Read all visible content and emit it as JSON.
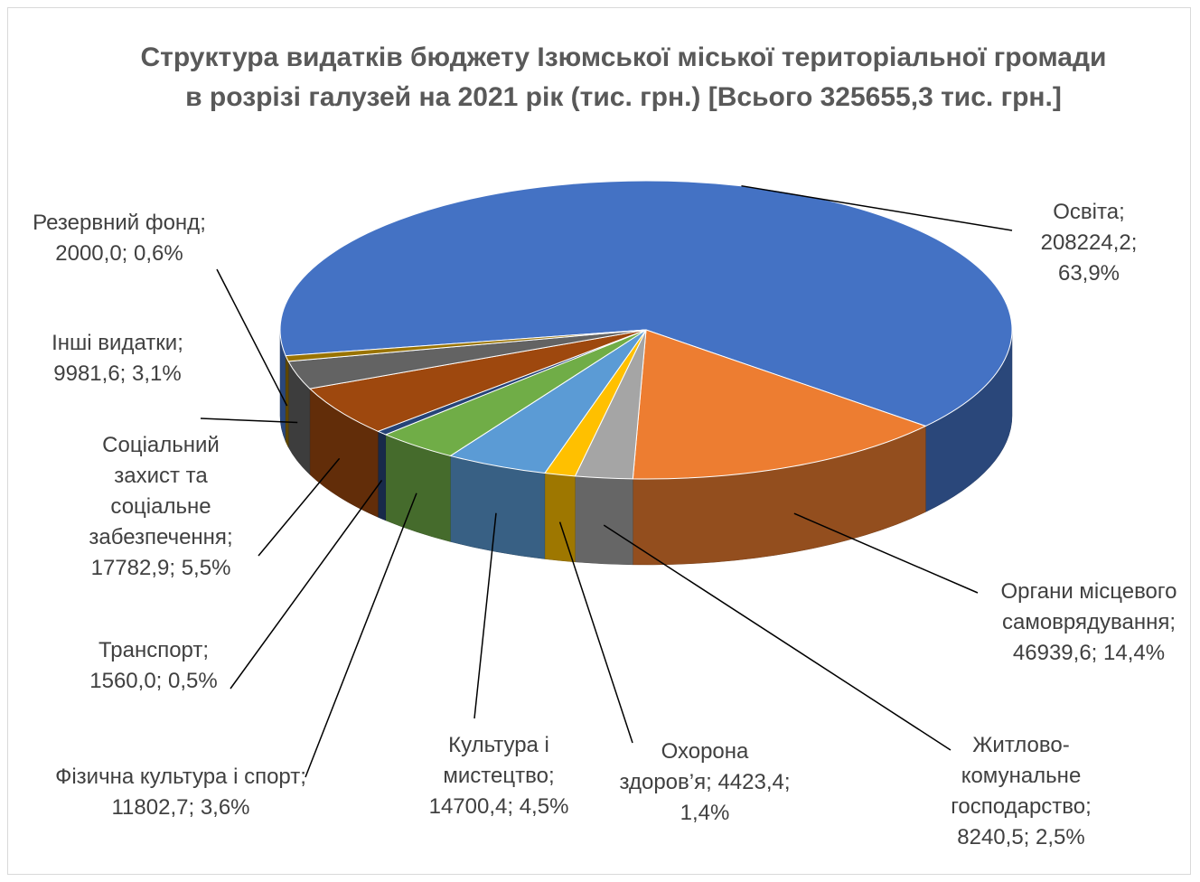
{
  "chart_data": {
    "type": "pie3d",
    "title": "Структура видатків бюджету Ізюмської міської територіальної громади в розрізі галузей на 2021 рік (тис. грн.) [Всього 325655,3 тис. грн.]",
    "label_separator": "; ",
    "categories": [
      "Освіта",
      "Органи місцевого самоврядування",
      "Житлово-комунальне господарство",
      "Охорона здоров’я",
      "Культура і мистецтво",
      "Фізична культура і спорт",
      "Транспорт",
      "Соціальний захист та соціальне забезпечення",
      "Інші видатки",
      "Резервний фонд"
    ],
    "values": [
      208224.2,
      46939.6,
      8240.5,
      4423.4,
      14700.4,
      11802.7,
      1560.0,
      17782.9,
      9981.6,
      2000.0
    ],
    "value_labels": [
      "208224,2",
      "46939,6",
      "8240,5",
      "4423,4",
      "14700,4",
      "11802,7",
      "1560,0",
      "17782,9",
      "9981,6",
      "2000,0"
    ],
    "percent_labels": [
      "63,9%",
      "14,4%",
      "2,5%",
      "1,4%",
      "4,5%",
      "3,6%",
      "0,5%",
      "5,5%",
      "3,1%",
      "0,6%"
    ],
    "colors": [
      "#4472c4",
      "#ed7d31",
      "#a5a5a5",
      "#ffc000",
      "#5b9bd5",
      "#70ad47",
      "#264478",
      "#9e480e",
      "#636363",
      "#997300"
    ]
  }
}
